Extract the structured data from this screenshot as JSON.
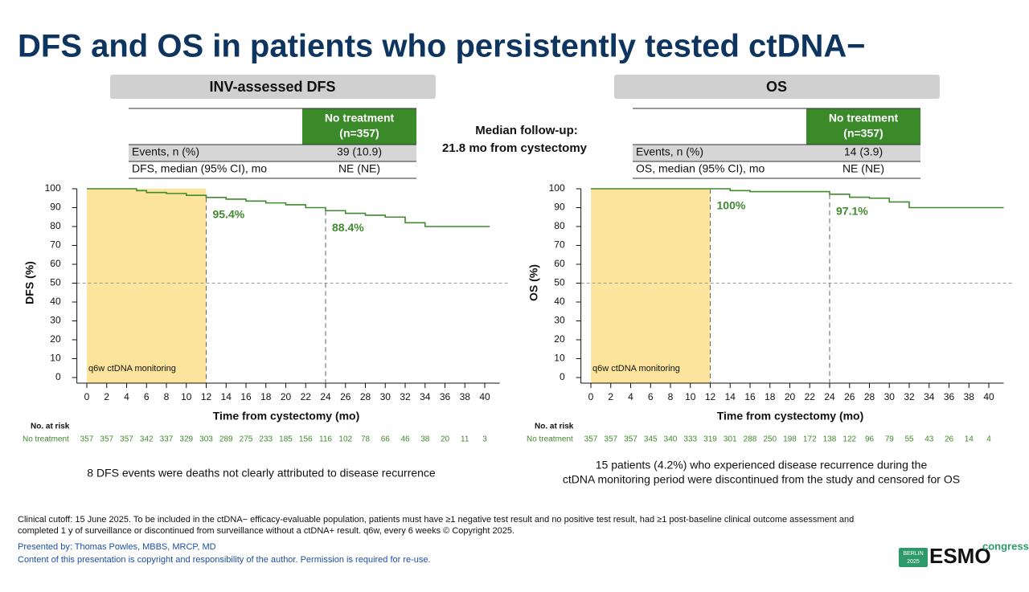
{
  "title": "DFS and OS in patients who persistently tested ctDNA−",
  "median_followup": [
    "Median follow-up:",
    "21.8 mo from cystectomy"
  ],
  "chart_data": [
    {
      "type": "step",
      "title": "INV-assessed DFS",
      "table": {
        "header": [
          "No treatment",
          "(n=357)"
        ],
        "rows": [
          [
            "Events, n (%)",
            "39 (10.9)"
          ],
          [
            "DFS, median (95% CI), mo",
            "NE (NE)"
          ]
        ]
      },
      "x_label": "Time from cystectomy (mo)",
      "y_label": "DFS (%)",
      "color": "#3f8a2e",
      "x": [
        0,
        4,
        5,
        6,
        8,
        10,
        12,
        14,
        16,
        18,
        20,
        22,
        24,
        26,
        28,
        30,
        32,
        34,
        36,
        38,
        40.5
      ],
      "values": [
        100,
        100,
        99,
        98,
        97.5,
        96.5,
        95.4,
        94.5,
        93.5,
        92.5,
        91.5,
        90,
        88.4,
        87,
        86,
        85,
        82,
        80,
        80,
        80,
        80
      ],
      "xlim": [
        -1,
        41.5
      ],
      "ylim": [
        -3,
        100
      ],
      "xticks": [
        0,
        2,
        4,
        6,
        8,
        10,
        12,
        14,
        16,
        18,
        20,
        22,
        24,
        26,
        28,
        30,
        32,
        34,
        36,
        38,
        40
      ],
      "yticks": [
        0,
        10,
        20,
        30,
        40,
        50,
        60,
        70,
        80,
        90,
        100
      ],
      "reference_y": 50,
      "shade": {
        "xlim": [
          0,
          12
        ],
        "label": "q6w ctDNA monitoring",
        "color": "#fde49c"
      },
      "landmarks": {
        "x": [
          12,
          24
        ],
        "values": [
          95.4,
          88.4
        ],
        "value_labels": [
          "95.4%",
          "88.4%"
        ]
      },
      "risk_table": {
        "title": "No. at risk",
        "row_label": "No treatment",
        "values": [
          357,
          357,
          357,
          342,
          337,
          329,
          303,
          289,
          275,
          233,
          185,
          156,
          116,
          102,
          78,
          66,
          46,
          38,
          20,
          11,
          3
        ]
      },
      "note": [
        "8 DFS events were deaths not clearly attributed to disease recurrence"
      ]
    },
    {
      "type": "step",
      "title": "OS",
      "table": {
        "header": [
          "No treatment",
          "(n=357)"
        ],
        "rows": [
          [
            "Events, n (%)",
            "14 (3.9)"
          ],
          [
            "OS, median (95% CI), mo",
            "NE (NE)"
          ]
        ]
      },
      "x_label": "Time from cystectomy (mo)",
      "y_label": "OS (%)",
      "color": "#3f8a2e",
      "x": [
        0,
        8,
        12,
        14,
        16,
        18,
        20,
        22,
        24,
        26,
        28,
        30,
        32,
        34,
        36,
        38,
        40,
        41.5
      ],
      "values": [
        100,
        100,
        100,
        99,
        98.5,
        98.5,
        98.5,
        98.5,
        97.1,
        95.5,
        95,
        93,
        90,
        90,
        90,
        90,
        90,
        90
      ],
      "xlim": [
        -1,
        41.5
      ],
      "ylim": [
        -3,
        100
      ],
      "xticks": [
        0,
        2,
        4,
        6,
        8,
        10,
        12,
        14,
        16,
        18,
        20,
        22,
        24,
        26,
        28,
        30,
        32,
        34,
        36,
        38,
        40
      ],
      "yticks": [
        0,
        10,
        20,
        30,
        40,
        50,
        60,
        70,
        80,
        90,
        100
      ],
      "reference_y": 50,
      "shade": {
        "xlim": [
          0,
          12
        ],
        "label": "q6w ctDNA monitoring",
        "color": "#fde49c"
      },
      "landmarks": {
        "x": [
          12,
          24
        ],
        "values": [
          100,
          97.1
        ],
        "value_labels": [
          "100%",
          "97.1%"
        ]
      },
      "risk_table": {
        "title": "No. at risk",
        "row_label": "No treatment",
        "values": [
          357,
          357,
          357,
          345,
          340,
          333,
          319,
          301,
          288,
          250,
          198,
          172,
          138,
          122,
          96,
          79,
          55,
          43,
          26,
          14,
          4
        ]
      },
      "note": [
        "15 patients (4.2%) who experienced disease recurrence during the",
        "ctDNA monitoring period were discontinued from the study and censored for OS"
      ]
    }
  ],
  "footer": {
    "cutoff": [
      "Clinical cutoff: 15 June 2025. To be included in the ctDNA− efficacy-evaluable population, patients must have ≥1 negative test result and no positive test result, had ≥1 post-baseline clinical outcome assessment and",
      "completed 1 y of surveillance or discontinued from surveillance without a ctDNA+ result. q6w, every 6 weeks © Copyright 2025."
    ],
    "presenter": "Presented by: Thomas Powles, MBBS, MRCP, MD",
    "copyright": "Content of this presentation is copyright and responsibility of the author. Permission is required for re-use.",
    "logo": {
      "city": "BERLIN",
      "year": "2025",
      "brand": "ESMO",
      "suffix": "congress"
    }
  }
}
